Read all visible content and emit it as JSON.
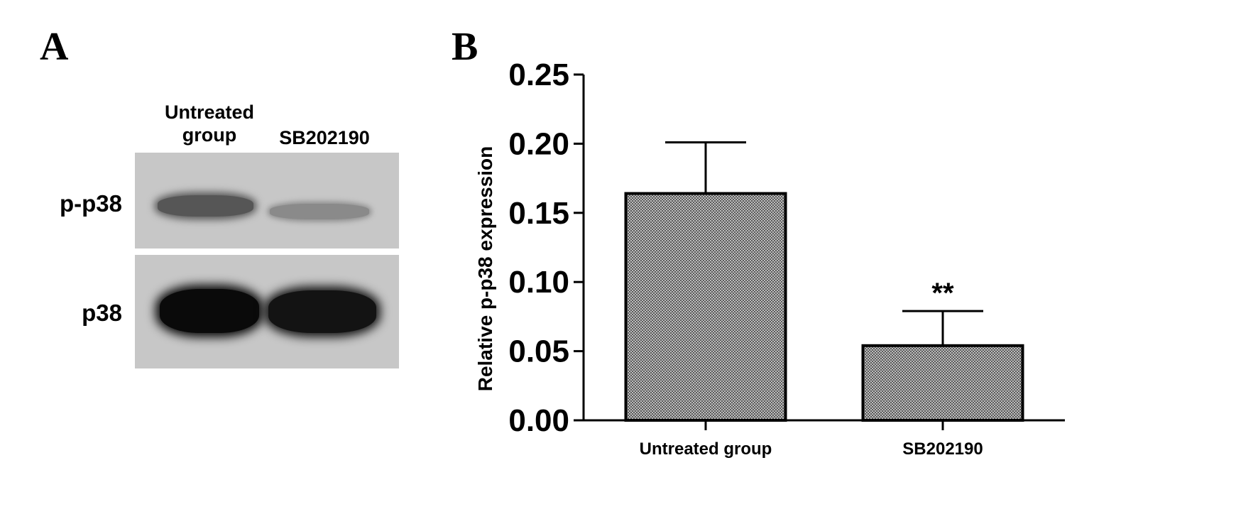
{
  "panels": {
    "a_label": "A",
    "b_label": "B"
  },
  "blot": {
    "lane_headers": [
      "Untreated\ngroup",
      "SB202190"
    ],
    "rows": [
      {
        "label": "p-p38",
        "band_intensity": [
          0.55,
          0.25
        ]
      },
      {
        "label": "p38",
        "band_intensity": [
          1.0,
          0.95
        ]
      }
    ]
  },
  "chart_data": {
    "type": "bar",
    "categories": [
      "Untreated group",
      "SB202190"
    ],
    "values": [
      0.164,
      0.054
    ],
    "errors": [
      0.037,
      0.025
    ],
    "significance": [
      "",
      "**"
    ],
    "xlabel": "",
    "ylabel": "Relative p-p38 expression",
    "ylim": [
      0,
      0.25
    ],
    "yticks": [
      "0.00",
      "0.05",
      "0.10",
      "0.15",
      "0.20",
      "0.25"
    ],
    "bar_fill": "#8a8a8a",
    "grid": false
  }
}
